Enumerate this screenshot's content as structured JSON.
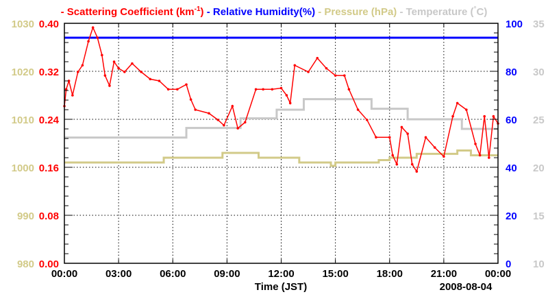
{
  "chart_data": {
    "type": "line",
    "legend": [
      {
        "prefix": "- ",
        "label": "Scattering Coefficient (km",
        "sup": "-1",
        "suffix": ")",
        "color": "#ff0000"
      },
      {
        "prefix": " - ",
        "label": "Relative Humidity(%)",
        "color": "#0000ff"
      },
      {
        "prefix": " - ",
        "label": "Pressure (hPa)",
        "color": "#d2ca88"
      },
      {
        "prefix": " - ",
        "label": "Temperature (",
        "sup": "°",
        "suffix": "C)",
        "color": "#c8c8c8"
      }
    ],
    "legend_position": "top",
    "xlabel": "Time (JST)",
    "date_label": "2008-08-04",
    "xlim": [
      0,
      24
    ],
    "x_ticks": [
      {
        "v": 0,
        "label": "00:00"
      },
      {
        "v": 3,
        "label": "03:00"
      },
      {
        "v": 6,
        "label": "06:00"
      },
      {
        "v": 9,
        "label": "09:00"
      },
      {
        "v": 12,
        "label": "12:00"
      },
      {
        "v": 15,
        "label": "15:00"
      },
      {
        "v": 18,
        "label": "18:00"
      },
      {
        "v": 21,
        "label": "21:00"
      },
      {
        "v": 24,
        "label": "00:00"
      }
    ],
    "axes": {
      "scattering": {
        "range": [
          0,
          0.4
        ],
        "ticks": [
          "0.00",
          "0.08",
          "0.16",
          "0.24",
          "0.32",
          "0.40"
        ],
        "color": "#ff0000"
      },
      "pressure": {
        "range": [
          980,
          1030
        ],
        "ticks": [
          "980",
          "990",
          "1000",
          "1010",
          "1020",
          "1030"
        ],
        "color": "#d2ca88"
      },
      "humidity": {
        "range": [
          0,
          100
        ],
        "ticks": [
          "0",
          "20",
          "40",
          "60",
          "80",
          "100"
        ],
        "color": "#0000ff"
      },
      "temperature": {
        "range": [
          10,
          35
        ],
        "ticks": [
          "10",
          "15",
          "20",
          "25",
          "30",
          "35"
        ],
        "color": "#c8c8c8"
      }
    },
    "grid": true,
    "series": [
      {
        "name": "Scattering Coefficient",
        "axis": "scattering",
        "color": "#ff0000",
        "step": false,
        "points": [
          [
            0,
            0.262
          ],
          [
            0.1,
            0.29
          ],
          [
            0.25,
            0.304
          ],
          [
            0.45,
            0.28
          ],
          [
            0.75,
            0.319
          ],
          [
            1.0,
            0.33
          ],
          [
            1.33,
            0.37
          ],
          [
            1.58,
            0.393
          ],
          [
            1.83,
            0.376
          ],
          [
            2.08,
            0.347
          ],
          [
            2.25,
            0.313
          ],
          [
            2.5,
            0.296
          ],
          [
            2.75,
            0.336
          ],
          [
            3.0,
            0.325
          ],
          [
            3.33,
            0.319
          ],
          [
            3.75,
            0.333
          ],
          [
            4.25,
            0.319
          ],
          [
            4.75,
            0.307
          ],
          [
            5.25,
            0.304
          ],
          [
            5.75,
            0.29
          ],
          [
            6.25,
            0.29
          ],
          [
            6.75,
            0.298
          ],
          [
            7.0,
            0.273
          ],
          [
            7.25,
            0.256
          ],
          [
            8.0,
            0.25
          ],
          [
            8.5,
            0.239
          ],
          [
            8.83,
            0.23
          ],
          [
            9.3,
            0.262
          ],
          [
            9.6,
            0.225
          ],
          [
            10.0,
            0.235
          ],
          [
            10.6,
            0.29
          ],
          [
            11.0,
            0.29
          ],
          [
            11.5,
            0.29
          ],
          [
            12.0,
            0.292
          ],
          [
            12.3,
            0.28
          ],
          [
            12.5,
            0.267
          ],
          [
            12.75,
            0.33
          ],
          [
            13.5,
            0.319
          ],
          [
            14.0,
            0.342
          ],
          [
            14.5,
            0.325
          ],
          [
            15.0,
            0.313
          ],
          [
            15.5,
            0.313
          ],
          [
            15.75,
            0.29
          ],
          [
            16.25,
            0.256
          ],
          [
            16.75,
            0.239
          ],
          [
            17.25,
            0.21
          ],
          [
            18.0,
            0.21
          ],
          [
            18.17,
            0.18
          ],
          [
            18.4,
            0.165
          ],
          [
            18.67,
            0.227
          ],
          [
            19.0,
            0.216
          ],
          [
            19.25,
            0.165
          ],
          [
            19.5,
            0.153
          ],
          [
            20.0,
            0.21
          ],
          [
            20.5,
            0.193
          ],
          [
            21.0,
            0.178
          ],
          [
            21.5,
            0.245
          ],
          [
            21.75,
            0.267
          ],
          [
            22.25,
            0.256
          ],
          [
            22.75,
            0.199
          ],
          [
            23.0,
            0.18
          ],
          [
            23.25,
            0.245
          ],
          [
            23.5,
            0.176
          ],
          [
            23.75,
            0.245
          ],
          [
            24.0,
            0.233
          ]
        ]
      },
      {
        "name": "Relative Humidity",
        "axis": "humidity",
        "color": "#0000ff",
        "step": true,
        "points": [
          [
            0,
            94
          ],
          [
            24,
            94
          ]
        ]
      },
      {
        "name": "Pressure",
        "axis": "pressure",
        "color": "#d2ca88",
        "step": true,
        "points": [
          [
            0,
            1001
          ],
          [
            5.5,
            1002
          ],
          [
            8.75,
            1003
          ],
          [
            10.75,
            1002
          ],
          [
            13.0,
            1001
          ],
          [
            14.75,
            1000.3
          ],
          [
            15.0,
            1001
          ],
          [
            17.4,
            1001.5
          ],
          [
            18.0,
            1002
          ],
          [
            19.5,
            1002.8
          ],
          [
            21.75,
            1003.5
          ],
          [
            22.5,
            1002.5
          ],
          [
            24,
            1002.5
          ]
        ]
      },
      {
        "name": "Temperature",
        "axis": "temperature",
        "color": "#c8c8c8",
        "step": true,
        "points": [
          [
            0,
            23.1
          ],
          [
            6.75,
            24.1
          ],
          [
            9.75,
            25.1
          ],
          [
            11.75,
            26.0
          ],
          [
            13.25,
            27.1
          ],
          [
            17.0,
            26.1
          ],
          [
            19.0,
            25.0
          ],
          [
            22.0,
            24.0
          ],
          [
            24,
            24.0
          ]
        ]
      }
    ]
  }
}
